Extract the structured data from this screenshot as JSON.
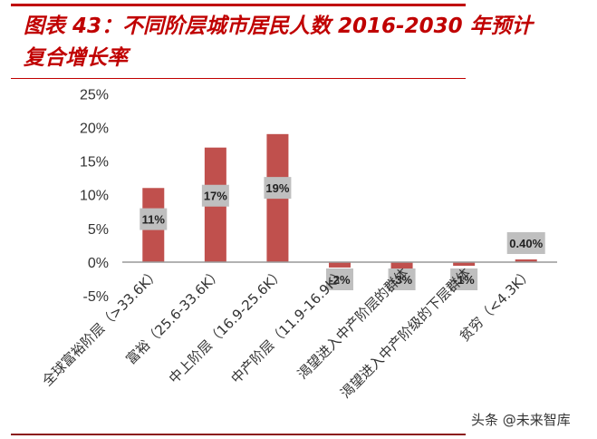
{
  "chart_data": {
    "type": "bar",
    "title": "图表 43：不同阶层城市居民人数 2016-2030 年预计复合增长率",
    "title_lines": [
      "图表 43：不同阶层城市居民人数 2016-2030 年预计",
      "复合增长率"
    ],
    "categories": [
      "全球富裕阶层（>33.6K）",
      "富裕（25.6-33.6K）",
      "中上阶层（16.9-25.6K）",
      "中产阶层（11.9-16.9K）",
      "渴望进入中产阶层的群体",
      "渴望进入中产阶级的下层群体",
      "贫穷（<4.3K）"
    ],
    "values": [
      11,
      17,
      19,
      -2,
      -3,
      -1,
      0.4
    ],
    "data_labels": [
      "11%",
      "17%",
      "19%",
      "-2%",
      "-3%",
      "-1%",
      "0.40%"
    ],
    "ylim": [
      -5,
      25
    ],
    "yticks": [
      "25%",
      "20%",
      "15%",
      "10%",
      "5%",
      "0%",
      "-5%"
    ],
    "ytick_values": [
      25,
      20,
      15,
      10,
      5,
      0,
      -5
    ],
    "xlabel": "",
    "ylabel": "",
    "grid": false,
    "bar_color": "#c0504d",
    "label_box_color": "#bfbfbf",
    "title_color": "#c00000"
  },
  "watermark": "头条 @未来智库"
}
